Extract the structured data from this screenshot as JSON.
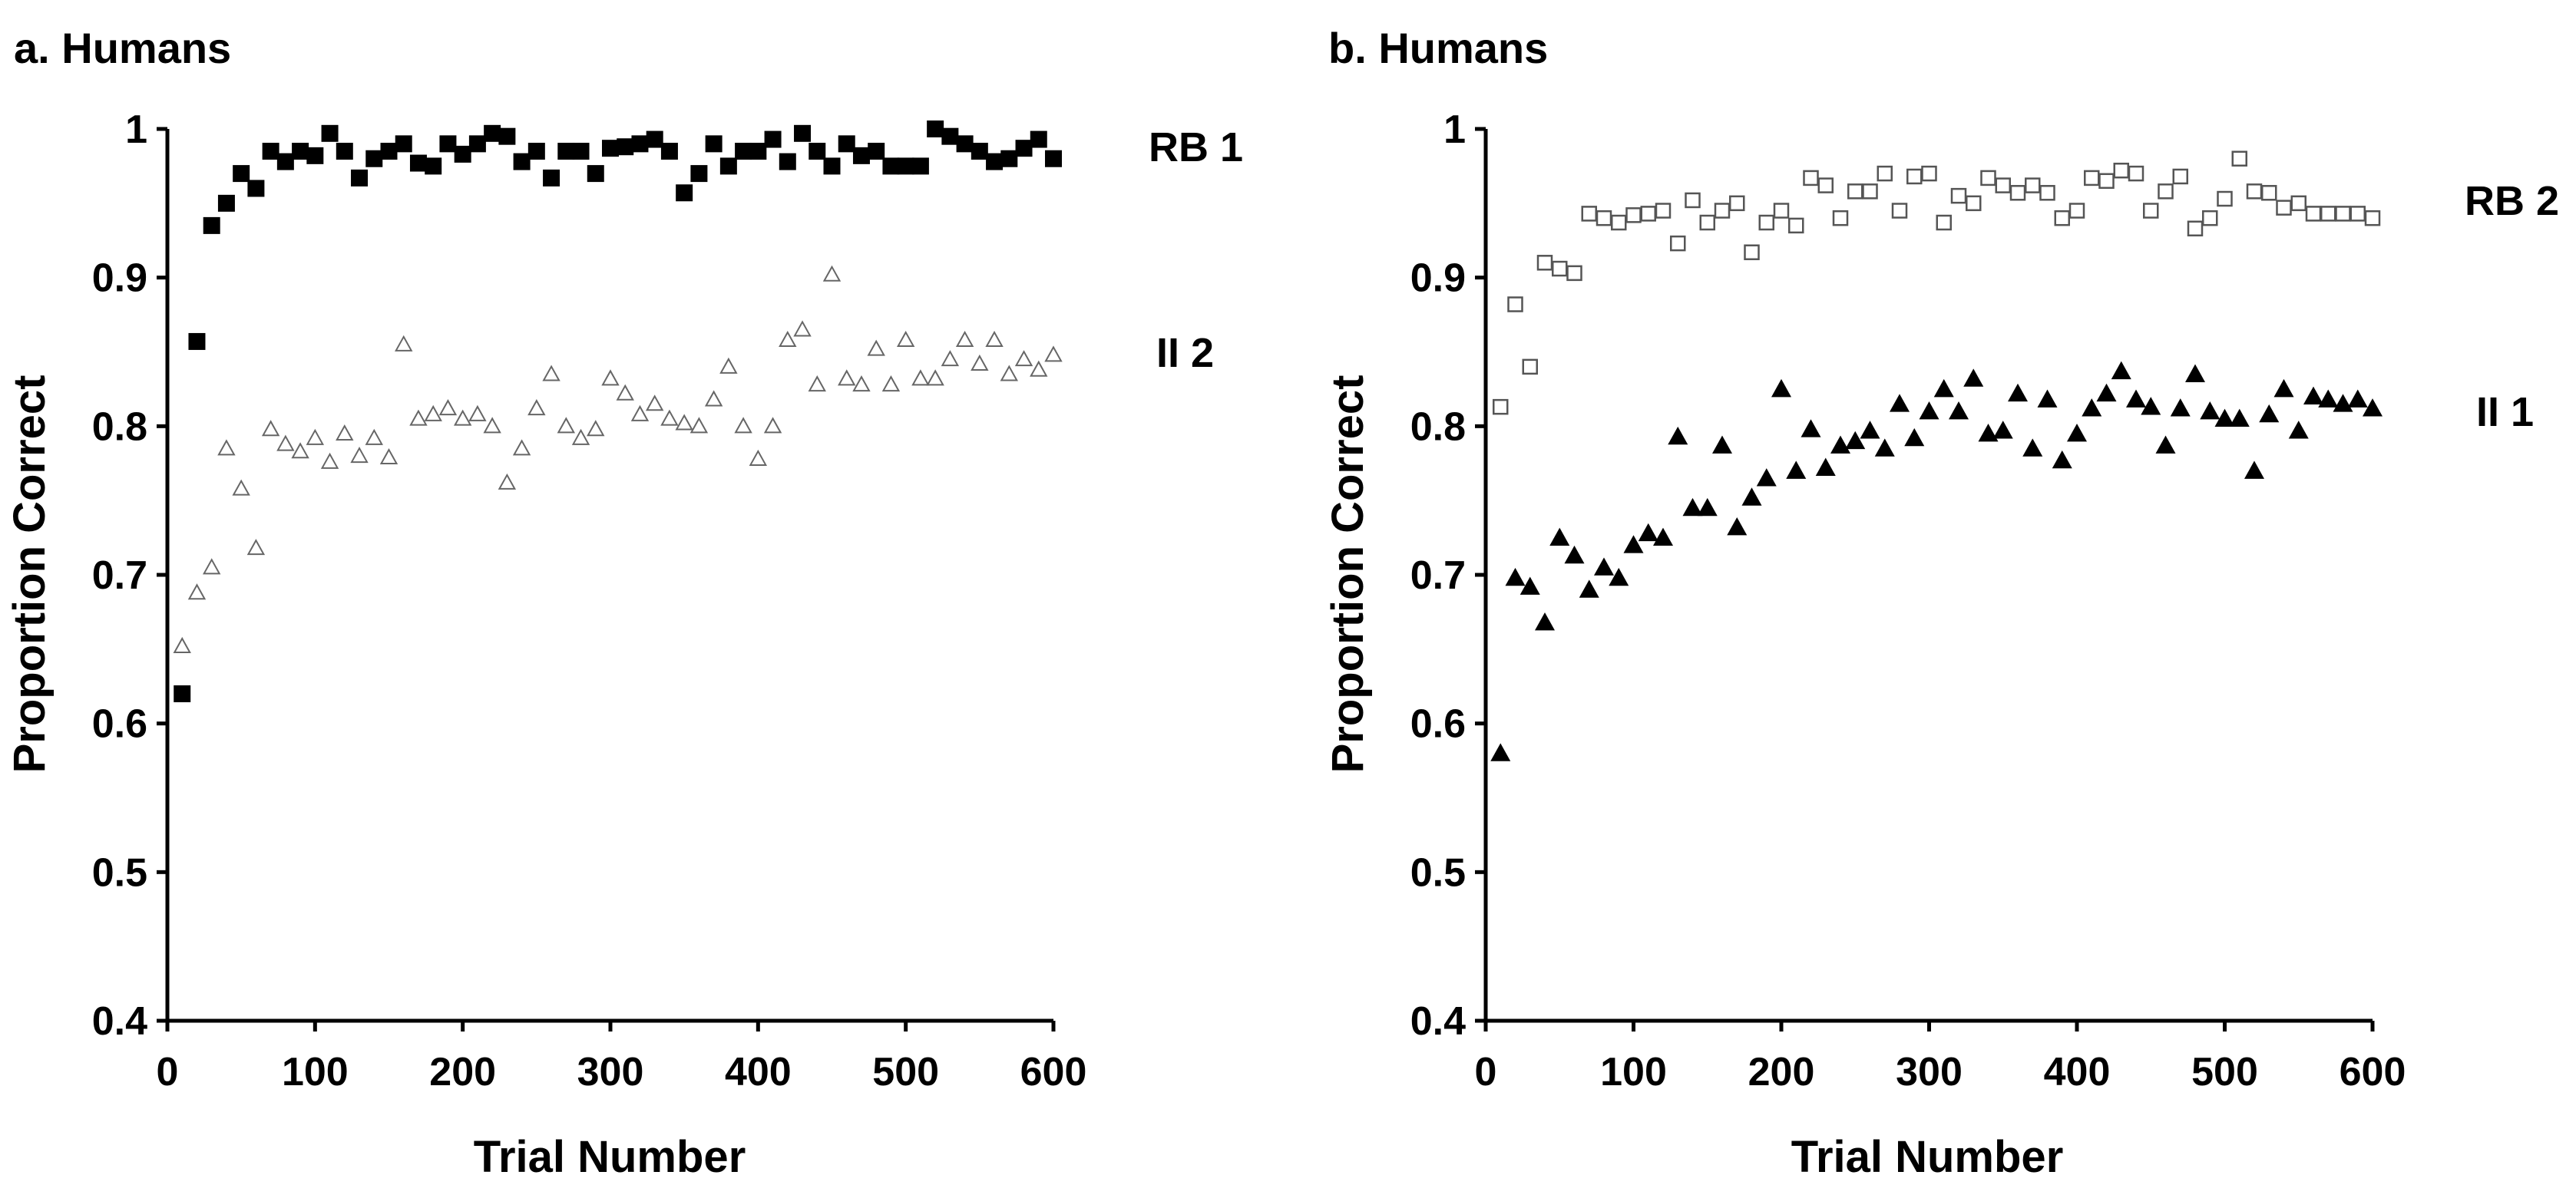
{
  "chart_data": [
    {
      "type": "scatter",
      "title": "a. Humans",
      "xlabel": "Trial Number",
      "ylabel": "Proportion  Correct",
      "xlim": [
        0,
        600
      ],
      "ylim": [
        0.4,
        1.0
      ],
      "xticks": [
        "0",
        "100",
        "200",
        "300",
        "400",
        "500",
        "600"
      ],
      "yticks": [
        "0.4",
        "0.5",
        "0.6",
        "0.7",
        "0.8",
        "0.9",
        "1"
      ],
      "grid": false,
      "series": [
        {
          "name": "RB 1",
          "marker": "filled-square",
          "x": [
            10,
            20,
            30,
            40,
            50,
            60,
            70,
            80,
            90,
            100,
            110,
            120,
            130,
            140,
            150,
            160,
            170,
            180,
            190,
            200,
            210,
            220,
            230,
            240,
            250,
            260,
            270,
            280,
            290,
            300,
            310,
            320,
            330,
            340,
            350,
            360,
            370,
            380,
            390,
            400,
            410,
            420,
            430,
            440,
            450,
            460,
            470,
            480,
            490,
            500,
            510,
            520,
            530,
            540,
            550,
            560,
            570,
            580,
            590,
            600
          ],
          "y": [
            0.62,
            0.857,
            0.935,
            0.95,
            0.97,
            0.96,
            0.985,
            0.978,
            0.985,
            0.982,
            0.997,
            0.985,
            0.967,
            0.98,
            0.985,
            0.99,
            0.977,
            0.975,
            0.99,
            0.983,
            0.99,
            0.997,
            0.995,
            0.978,
            0.985,
            0.967,
            0.985,
            0.985,
            0.97,
            0.987,
            0.988,
            0.99,
            0.993,
            0.985,
            0.957,
            0.97,
            0.99,
            0.975,
            0.985,
            0.985,
            0.993,
            0.978,
            0.997,
            0.985,
            0.975,
            0.99,
            0.982,
            0.985,
            0.975,
            0.975,
            0.975,
            1.0,
            0.995,
            0.99,
            0.985,
            0.978,
            0.98,
            0.987,
            0.993,
            0.98
          ]
        },
        {
          "name": "II 2",
          "marker": "open-triangle",
          "x": [
            10,
            20,
            30,
            40,
            50,
            60,
            70,
            80,
            90,
            100,
            110,
            120,
            130,
            140,
            150,
            160,
            170,
            180,
            190,
            200,
            210,
            220,
            230,
            240,
            250,
            260,
            270,
            280,
            290,
            300,
            310,
            320,
            330,
            340,
            350,
            360,
            370,
            380,
            390,
            400,
            410,
            420,
            430,
            440,
            450,
            460,
            470,
            480,
            490,
            500,
            510,
            520,
            530,
            540,
            550,
            560,
            570,
            580,
            590,
            600
          ],
          "y": [
            0.652,
            0.688,
            0.705,
            0.785,
            0.758,
            0.718,
            0.798,
            0.788,
            0.783,
            0.792,
            0.776,
            0.795,
            0.78,
            0.792,
            0.779,
            0.855,
            0.805,
            0.808,
            0.812,
            0.805,
            0.808,
            0.8,
            0.762,
            0.785,
            0.812,
            0.835,
            0.8,
            0.792,
            0.798,
            0.832,
            0.822,
            0.808,
            0.815,
            0.805,
            0.802,
            0.8,
            0.818,
            0.84,
            0.8,
            0.778,
            0.8,
            0.858,
            0.865,
            0.828,
            0.902,
            0.832,
            0.828,
            0.852,
            0.828,
            0.858,
            0.832,
            0.832,
            0.845,
            0.858,
            0.842,
            0.858,
            0.835,
            0.845,
            0.838,
            0.848
          ]
        }
      ]
    },
    {
      "type": "scatter",
      "title": "b. Humans",
      "xlabel": "Trial Number",
      "ylabel": "Proportion  Correct",
      "xlim": [
        0,
        600
      ],
      "ylim": [
        0.4,
        1.0
      ],
      "xticks": [
        "0",
        "100",
        "200",
        "300",
        "400",
        "500",
        "600"
      ],
      "yticks": [
        "0.4",
        "0.5",
        "0.6",
        "0.7",
        "0.8",
        "0.9",
        "1"
      ],
      "grid": false,
      "series": [
        {
          "name": "RB 2",
          "marker": "open-square",
          "x": [
            10,
            20,
            30,
            40,
            50,
            60,
            70,
            80,
            90,
            100,
            110,
            120,
            130,
            140,
            150,
            160,
            170,
            180,
            190,
            200,
            210,
            220,
            230,
            240,
            250,
            260,
            270,
            280,
            290,
            300,
            310,
            320,
            330,
            340,
            350,
            360,
            370,
            380,
            390,
            400,
            410,
            420,
            430,
            440,
            450,
            460,
            470,
            480,
            490,
            500,
            510,
            520,
            530,
            540,
            550,
            560,
            570,
            580,
            590,
            600
          ],
          "y": [
            0.813,
            0.882,
            0.84,
            0.91,
            0.906,
            0.903,
            0.943,
            0.94,
            0.937,
            0.942,
            0.943,
            0.945,
            0.923,
            0.952,
            0.937,
            0.945,
            0.95,
            0.917,
            0.937,
            0.945,
            0.935,
            0.967,
            0.962,
            0.94,
            0.958,
            0.958,
            0.97,
            0.945,
            0.968,
            0.97,
            0.937,
            0.955,
            0.95,
            0.967,
            0.962,
            0.957,
            0.962,
            0.957,
            0.94,
            0.945,
            0.967,
            0.965,
            0.972,
            0.97,
            0.945,
            0.958,
            0.968,
            0.933,
            0.94,
            0.953,
            0.98,
            0.958,
            0.957,
            0.947,
            0.95,
            0.943,
            0.943,
            0.943,
            0.943,
            0.94
          ]
        },
        {
          "name": "II 1",
          "marker": "filled-triangle",
          "x": [
            10,
            20,
            30,
            40,
            50,
            60,
            70,
            80,
            90,
            100,
            110,
            120,
            130,
            140,
            150,
            160,
            170,
            180,
            190,
            200,
            210,
            220,
            230,
            240,
            250,
            260,
            270,
            280,
            290,
            300,
            310,
            320,
            330,
            340,
            350,
            360,
            370,
            380,
            390,
            400,
            410,
            420,
            430,
            440,
            450,
            460,
            470,
            480,
            490,
            500,
            510,
            520,
            530,
            540,
            550,
            560,
            570,
            580,
            590,
            600
          ],
          "y": [
            0.58,
            0.698,
            0.692,
            0.668,
            0.725,
            0.713,
            0.69,
            0.705,
            0.698,
            0.72,
            0.728,
            0.725,
            0.793,
            0.745,
            0.745,
            0.787,
            0.732,
            0.752,
            0.765,
            0.825,
            0.77,
            0.798,
            0.772,
            0.787,
            0.79,
            0.797,
            0.785,
            0.815,
            0.792,
            0.81,
            0.825,
            0.81,
            0.832,
            0.795,
            0.797,
            0.822,
            0.785,
            0.818,
            0.777,
            0.795,
            0.812,
            0.822,
            0.837,
            0.818,
            0.813,
            0.787,
            0.812,
            0.835,
            0.81,
            0.805,
            0.805,
            0.77,
            0.808,
            0.825,
            0.797,
            0.82,
            0.818,
            0.815,
            0.818,
            0.812
          ]
        }
      ]
    }
  ]
}
